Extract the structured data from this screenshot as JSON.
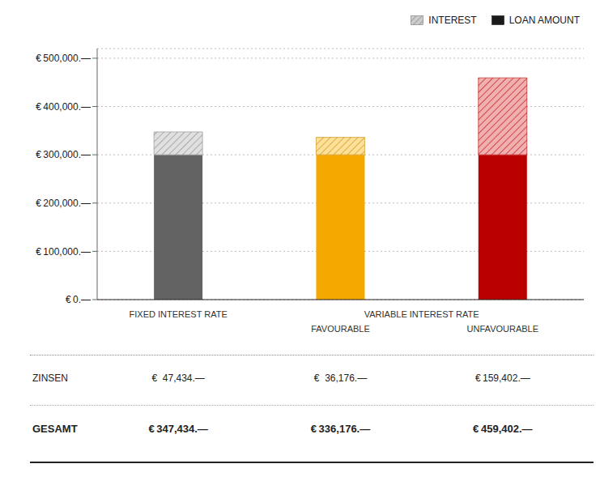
{
  "chart_data": {
    "type": "bar",
    "stacked": true,
    "categories": [
      "FIXED INTEREST RATE",
      "FAVOURABLE",
      "UNFAVOURABLE"
    ],
    "category_groups": [
      {
        "label": "VARIABLE INTEREST RATE",
        "members": [
          "FAVOURABLE",
          "UNFAVOURABLE"
        ]
      }
    ],
    "series": [
      {
        "name": "LOAN AMOUNT",
        "values": [
          300000,
          300000,
          300000
        ],
        "color": "#1a1a1a",
        "colors": [
          "#636363",
          "#f5a800",
          "#bb0000"
        ]
      },
      {
        "name": "INTEREST",
        "values": [
          47434,
          36176,
          159402
        ],
        "color": "#cccccc",
        "hatch_color": "#777777",
        "colors": [
          "#e0e0e0",
          "#fde09a",
          "#f0b0b0"
        ],
        "hatch_colors": [
          "#888888",
          "#c88a00",
          "#bb0000"
        ]
      }
    ],
    "ylim": [
      0,
      520000
    ],
    "yticks": [
      {
        "value": 0,
        "label": "€ 0.—"
      },
      {
        "value": 100000,
        "label": "€ 100,000.—"
      },
      {
        "value": 200000,
        "label": "€ 200,000.—"
      },
      {
        "value": 300000,
        "label": "€ 300,000.—"
      },
      {
        "value": 400000,
        "label": "€ 400,000.—"
      },
      {
        "value": 500000,
        "label": "€ 500,000.—"
      }
    ],
    "grid": true,
    "legend": "upper right",
    "table": {
      "rows": [
        {
          "label": "ZINSEN",
          "values": [
            47434,
            36176,
            159402
          ],
          "value_labels": [
            "€  47,434.—",
            "€  36,176.—",
            "€ 159,402.—"
          ]
        },
        {
          "label": "GESAMT",
          "values": [
            347434,
            336176,
            459402
          ],
          "value_labels": [
            "€ 347,434.—",
            "€ 336,176.—",
            "€ 459,402.—"
          ]
        }
      ]
    }
  }
}
